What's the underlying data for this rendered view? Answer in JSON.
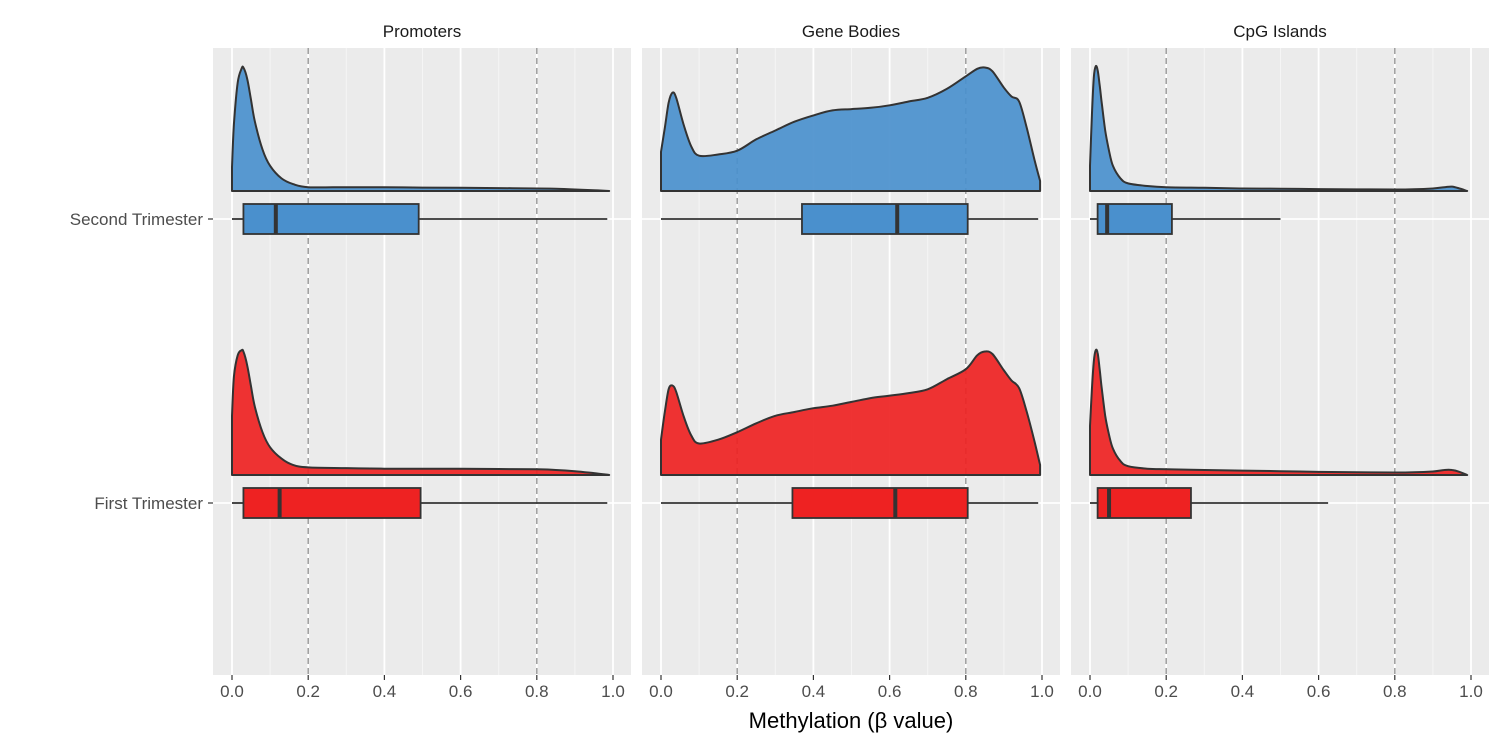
{
  "chart_data": {
    "type": "raincloud",
    "xlabel": "Methylation (β value)",
    "ylabel": "",
    "xlim": [
      0,
      1
    ],
    "x_ticks": [
      0.0,
      0.2,
      0.4,
      0.6,
      0.8,
      1.0
    ],
    "x_tick_labels": [
      "0.0",
      "0.2",
      "0.4",
      "0.6",
      "0.8",
      "1.0"
    ],
    "reference_lines": [
      0.2,
      0.8
    ],
    "grid": true,
    "legend": "none",
    "groups": [
      {
        "name": "Second Trimester",
        "color": "#4a90cd"
      },
      {
        "name": "First Trimester",
        "color": "#ee2222"
      }
    ],
    "panels": [
      {
        "title": "Promoters",
        "series": [
          {
            "group": "Second Trimester",
            "box": {
              "whisker_low": 0.0,
              "q1": 0.03,
              "median": 0.115,
              "q3": 0.49,
              "whisker_high": 0.985
            },
            "density": {
              "x": [
                0.0,
                0.005,
                0.015,
                0.025,
                0.03,
                0.04,
                0.05,
                0.06,
                0.08,
                0.1,
                0.13,
                0.16,
                0.2,
                0.3,
                0.4,
                0.5,
                0.6,
                0.7,
                0.8,
                0.85,
                0.9,
                0.95,
                0.99
              ],
              "y": [
                0.19,
                0.53,
                0.86,
                0.97,
                0.98,
                0.89,
                0.72,
                0.55,
                0.33,
                0.2,
                0.1,
                0.055,
                0.03,
                0.03,
                0.03,
                0.027,
                0.025,
                0.023,
                0.02,
                0.018,
                0.012,
                0.006,
                0.0
              ]
            }
          },
          {
            "group": "First Trimester",
            "box": {
              "whisker_low": 0.0,
              "q1": 0.03,
              "median": 0.125,
              "q3": 0.495,
              "whisker_high": 0.985
            },
            "density": {
              "x": [
                0.0,
                0.005,
                0.015,
                0.025,
                0.03,
                0.04,
                0.05,
                0.06,
                0.08,
                0.1,
                0.13,
                0.16,
                0.2,
                0.3,
                0.4,
                0.5,
                0.6,
                0.7,
                0.8,
                0.85,
                0.9,
                0.95,
                0.99
              ],
              "y": [
                0.47,
                0.78,
                0.95,
                0.99,
                0.98,
                0.87,
                0.7,
                0.54,
                0.34,
                0.22,
                0.13,
                0.08,
                0.06,
                0.055,
                0.05,
                0.05,
                0.05,
                0.048,
                0.045,
                0.04,
                0.03,
                0.015,
                0.0
              ]
            }
          }
        ]
      },
      {
        "title": "Gene Bodies",
        "series": [
          {
            "group": "Second Trimester",
            "box": {
              "whisker_low": 0.0,
              "q1": 0.37,
              "median": 0.62,
              "q3": 0.805,
              "whisker_high": 0.99
            },
            "density": {
              "x": [
                0.0,
                0.01,
                0.02,
                0.03,
                0.04,
                0.06,
                0.08,
                0.1,
                0.15,
                0.2,
                0.25,
                0.3,
                0.35,
                0.4,
                0.45,
                0.5,
                0.55,
                0.6,
                0.65,
                0.7,
                0.75,
                0.8,
                0.83,
                0.85,
                0.87,
                0.9,
                0.92,
                0.94,
                0.96,
                0.98,
                0.995
              ],
              "y": [
                0.31,
                0.5,
                0.7,
                0.78,
                0.74,
                0.52,
                0.35,
                0.28,
                0.29,
                0.32,
                0.41,
                0.48,
                0.55,
                0.6,
                0.64,
                0.65,
                0.66,
                0.68,
                0.71,
                0.74,
                0.81,
                0.91,
                0.97,
                0.98,
                0.95,
                0.82,
                0.75,
                0.71,
                0.5,
                0.25,
                0.08
              ]
            }
          },
          {
            "group": "First Trimester",
            "box": {
              "whisker_low": 0.0,
              "q1": 0.345,
              "median": 0.615,
              "q3": 0.805,
              "whisker_high": 0.99
            },
            "density": {
              "x": [
                0.0,
                0.01,
                0.02,
                0.03,
                0.04,
                0.06,
                0.08,
                0.1,
                0.15,
                0.2,
                0.25,
                0.3,
                0.35,
                0.4,
                0.45,
                0.5,
                0.55,
                0.6,
                0.65,
                0.7,
                0.75,
                0.8,
                0.83,
                0.85,
                0.87,
                0.9,
                0.92,
                0.94,
                0.96,
                0.98,
                0.995
              ],
              "y": [
                0.28,
                0.5,
                0.68,
                0.71,
                0.66,
                0.46,
                0.31,
                0.25,
                0.28,
                0.34,
                0.41,
                0.47,
                0.5,
                0.53,
                0.55,
                0.58,
                0.61,
                0.63,
                0.65,
                0.68,
                0.76,
                0.84,
                0.95,
                0.98,
                0.96,
                0.83,
                0.75,
                0.69,
                0.5,
                0.27,
                0.08
              ]
            }
          }
        ]
      },
      {
        "title": "CpG Islands",
        "series": [
          {
            "group": "Second Trimester",
            "box": {
              "whisker_low": 0.0,
              "q1": 0.02,
              "median": 0.045,
              "q3": 0.215,
              "whisker_high": 0.5
            },
            "density": {
              "x": [
                0.0,
                0.005,
                0.01,
                0.015,
                0.02,
                0.025,
                0.03,
                0.04,
                0.05,
                0.06,
                0.08,
                0.1,
                0.15,
                0.2,
                0.3,
                0.4,
                0.5,
                0.6,
                0.7,
                0.8,
                0.85,
                0.9,
                0.93,
                0.95,
                0.97,
                0.99
              ],
              "y": [
                0.2,
                0.6,
                0.9,
                0.99,
                0.96,
                0.85,
                0.72,
                0.48,
                0.32,
                0.2,
                0.1,
                0.06,
                0.04,
                0.03,
                0.025,
                0.02,
                0.018,
                0.015,
                0.013,
                0.012,
                0.014,
                0.02,
                0.03,
                0.035,
                0.02,
                0.0
              ]
            }
          },
          {
            "group": "First Trimester",
            "box": {
              "whisker_low": 0.0,
              "q1": 0.02,
              "median": 0.05,
              "q3": 0.265,
              "whisker_high": 0.625
            },
            "density": {
              "x": [
                0.0,
                0.005,
                0.01,
                0.015,
                0.02,
                0.025,
                0.03,
                0.04,
                0.05,
                0.06,
                0.08,
                0.1,
                0.15,
                0.2,
                0.3,
                0.4,
                0.5,
                0.6,
                0.7,
                0.8,
                0.85,
                0.9,
                0.93,
                0.95,
                0.97,
                0.99
              ],
              "y": [
                0.39,
                0.68,
                0.9,
                0.99,
                0.97,
                0.85,
                0.71,
                0.47,
                0.32,
                0.21,
                0.11,
                0.07,
                0.05,
                0.045,
                0.04,
                0.035,
                0.03,
                0.025,
                0.022,
                0.02,
                0.022,
                0.028,
                0.04,
                0.04,
                0.025,
                0.0
              ]
            }
          }
        ]
      }
    ]
  }
}
